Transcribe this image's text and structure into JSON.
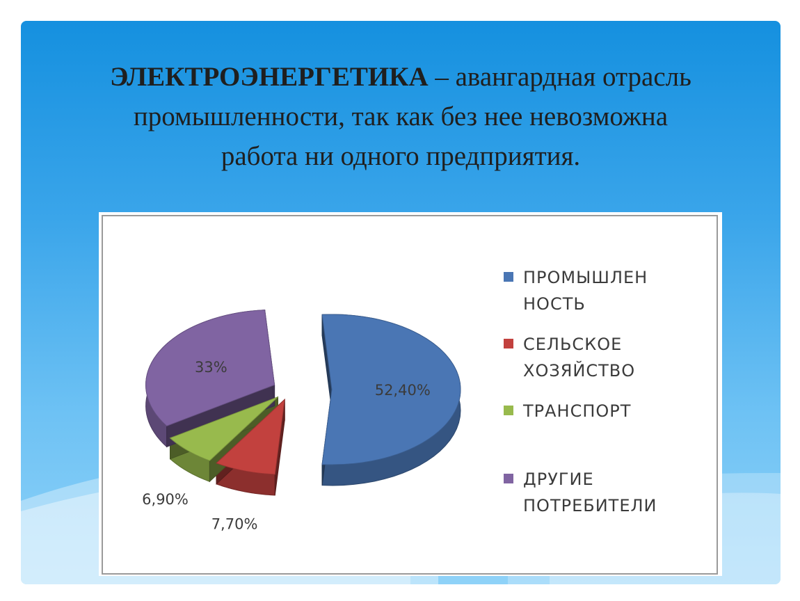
{
  "slide": {
    "background_color": "#3aa5ea",
    "title_bold": "ЭЛЕКТРОЭНЕРГЕТИКА",
    "title_rest_line1": " – авангардная отрасль",
    "title_line2": "промышленности, так как без нее невозможна",
    "title_line3": "работа ни одного предприятия."
  },
  "chart_data": {
    "type": "pie",
    "labels": [
      "ПРОМЫШЛЕННОСТЬ",
      "СЕЛЬСКОЕ ХОЗЯЙСТВО",
      "ТРАНСПОРТ",
      "ДРУГИЕ ПОТРЕБИТЕЛИ"
    ],
    "values": [
      52.4,
      7.7,
      6.9,
      33
    ],
    "data_labels": [
      "52,40%",
      "7,70%",
      "6,90%",
      "33%"
    ],
    "colors": [
      "#4a76b4",
      "#c2413e",
      "#98ba4d",
      "#8064a2"
    ],
    "legend": {
      "position": "right",
      "entries": [
        {
          "lines": [
            "ПРОМЫШЛЕН",
            "НОСТЬ"
          ],
          "color": "#4a76b4"
        },
        {
          "lines": [
            "СЕЛЬСКОЕ",
            "ХОЗЯЙСТВО"
          ],
          "color": "#c2413e"
        },
        {
          "lines": [
            "ТРАНСПОРТ"
          ],
          "color": "#98ba4d"
        },
        {
          "lines": [
            "ДРУГИЕ",
            "ПОТРЕБИТЕЛИ"
          ],
          "color": "#8064a2"
        }
      ]
    },
    "style": "3d-exploded"
  }
}
